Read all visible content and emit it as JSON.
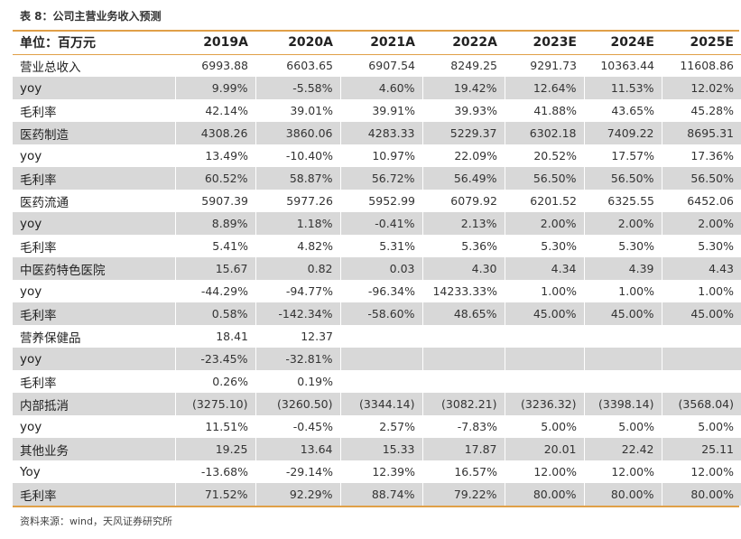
{
  "title": "表 8：公司主营业务收入预测",
  "header": [
    "单位：百万元",
    "2019A",
    "2020A",
    "2021A",
    "2022A",
    "2023E",
    "2024E",
    "2025E"
  ],
  "rows": [
    {
      "label": "营业总收入",
      "shaded": false,
      "values": [
        "6993.88",
        "6603.65",
        "6907.54",
        "8249.25",
        "9291.73",
        "10363.44",
        "11608.86"
      ]
    },
    {
      "label": "yoy",
      "shaded": true,
      "values": [
        "9.99%",
        "-5.58%",
        "4.60%",
        "19.42%",
        "12.64%",
        "11.53%",
        "12.02%"
      ]
    },
    {
      "label": "毛利率",
      "shaded": false,
      "values": [
        "42.14%",
        "39.01%",
        "39.91%",
        "39.93%",
        "41.88%",
        "43.65%",
        "45.28%"
      ]
    },
    {
      "label": "医药制造",
      "shaded": true,
      "values": [
        "4308.26",
        "3860.06",
        "4283.33",
        "5229.37",
        "6302.18",
        "7409.22",
        "8695.31"
      ]
    },
    {
      "label": "yoy",
      "shaded": false,
      "values": [
        "13.49%",
        "-10.40%",
        "10.97%",
        "22.09%",
        "20.52%",
        "17.57%",
        "17.36%"
      ]
    },
    {
      "label": "毛利率",
      "shaded": true,
      "values": [
        "60.52%",
        "58.87%",
        "56.72%",
        "56.49%",
        "56.50%",
        "56.50%",
        "56.50%"
      ]
    },
    {
      "label": "医药流通",
      "shaded": false,
      "values": [
        "5907.39",
        "5977.26",
        "5952.99",
        "6079.92",
        "6201.52",
        "6325.55",
        "6452.06"
      ]
    },
    {
      "label": "yoy",
      "shaded": true,
      "values": [
        "8.89%",
        "1.18%",
        "-0.41%",
        "2.13%",
        "2.00%",
        "2.00%",
        "2.00%"
      ]
    },
    {
      "label": "毛利率",
      "shaded": false,
      "values": [
        "5.41%",
        "4.82%",
        "5.31%",
        "5.36%",
        "5.30%",
        "5.30%",
        "5.30%"
      ]
    },
    {
      "label": "中医药特色医院",
      "shaded": true,
      "values": [
        "15.67",
        "0.82",
        "0.03",
        "4.30",
        "4.34",
        "4.39",
        "4.43"
      ]
    },
    {
      "label": "yoy",
      "shaded": false,
      "values": [
        "-44.29%",
        "-94.77%",
        "-96.34%",
        "14233.33%",
        "1.00%",
        "1.00%",
        "1.00%"
      ]
    },
    {
      "label": "毛利率",
      "shaded": true,
      "values": [
        "0.58%",
        "-142.34%",
        "-58.60%",
        "48.65%",
        "45.00%",
        "45.00%",
        "45.00%"
      ]
    },
    {
      "label": "营养保健品",
      "shaded": false,
      "values": [
        "18.41",
        "12.37",
        "",
        "",
        "",
        "",
        ""
      ]
    },
    {
      "label": "yoy",
      "shaded": true,
      "values": [
        "-23.45%",
        "-32.81%",
        "",
        "",
        "",
        "",
        ""
      ]
    },
    {
      "label": "毛利率",
      "shaded": false,
      "values": [
        "0.26%",
        "0.19%",
        "",
        "",
        "",
        "",
        ""
      ]
    },
    {
      "label": "内部抵消",
      "shaded": true,
      "values": [
        "(3275.10)",
        "(3260.50)",
        "(3344.14)",
        "(3082.21)",
        "(3236.32)",
        "(3398.14)",
        "(3568.04)"
      ]
    },
    {
      "label": "yoy",
      "shaded": false,
      "values": [
        "11.51%",
        "-0.45%",
        "2.57%",
        "-7.83%",
        "5.00%",
        "5.00%",
        "5.00%"
      ]
    },
    {
      "label": "其他业务",
      "shaded": true,
      "values": [
        "19.25",
        "13.64",
        "15.33",
        "17.87",
        "20.01",
        "22.42",
        "25.11"
      ]
    },
    {
      "label": "Yoy",
      "shaded": false,
      "values": [
        "-13.68%",
        "-29.14%",
        "12.39%",
        "16.57%",
        "12.00%",
        "12.00%",
        "12.00%"
      ]
    },
    {
      "label": "毛利率",
      "shaded": true,
      "values": [
        "71.52%",
        "92.29%",
        "88.74%",
        "79.22%",
        "80.00%",
        "80.00%",
        "80.00%"
      ]
    }
  ],
  "source": "资料来源：wind，天风证券研究所",
  "colors": {
    "accent_rule": "#e0a048",
    "shaded_row": "#d8d8d8"
  }
}
